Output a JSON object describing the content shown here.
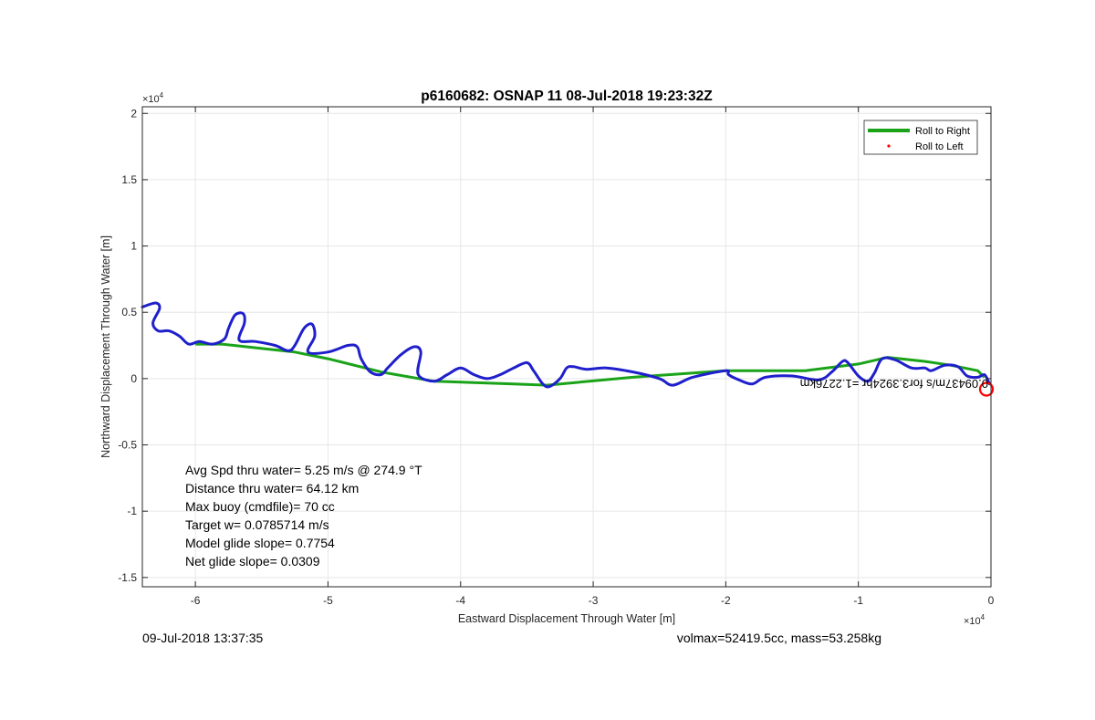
{
  "chart_data": {
    "type": "line",
    "title": "p6160682: OSNAP 11 08-Jul-2018 19:23:32Z",
    "xlabel": "Eastward Displacement Through Water [m]",
    "ylabel": "Northward Displacement Through Water [m]",
    "x_multiplier": "×10",
    "x_exponent": "4",
    "y_multiplier": "×10",
    "y_exponent": "4",
    "xlim": [
      -6.4,
      0
    ],
    "ylim": [
      -1.57,
      2.05
    ],
    "x_ticks": [
      -6,
      -5,
      -4,
      -3,
      -2,
      -1,
      0
    ],
    "x_tick_labels": [
      "-6",
      "-5",
      "-4",
      "-3",
      "-2",
      "-1",
      "0"
    ],
    "y_ticks": [
      -1.5,
      -1,
      -0.5,
      0,
      0.5,
      1,
      1.5,
      2
    ],
    "y_tick_labels": [
      "-1.5",
      "-1",
      "-0.5",
      "0",
      "0.5",
      "1",
      "1.5",
      "2"
    ],
    "grid": true,
    "legend": {
      "location": "top-right",
      "entries": [
        {
          "label": "Roll to Right",
          "color": "#1aa319",
          "marker": "line"
        },
        {
          "label": "Roll to Left",
          "color": "#ff0000",
          "marker": "dot"
        }
      ]
    },
    "series": [
      {
        "name": "Roll to Right",
        "color": "#1aa319",
        "x": [
          -6.0,
          -5.8,
          -5.25,
          -5.0,
          -4.6,
          -4.2,
          -3.6,
          -3.35,
          -2.7,
          -2.0,
          -1.4,
          -1.0,
          -0.78,
          -0.5,
          -0.3,
          -0.1,
          -0.05
        ],
        "y": [
          0.26,
          0.26,
          0.2,
          0.15,
          0.05,
          -0.02,
          -0.04,
          -0.05,
          0.01,
          0.06,
          0.06,
          0.11,
          0.16,
          0.13,
          0.1,
          0.06,
          0.01
        ]
      },
      {
        "color": "#1f1fcc",
        "x": [
          -6.4,
          -6.3,
          -6.27,
          -6.32,
          -6.28,
          -6.2,
          -6.12,
          -6.05,
          -5.97,
          -5.87,
          -5.78,
          -5.75,
          -5.7,
          -5.64,
          -5.63,
          -5.67,
          -5.55,
          -5.4,
          -5.3,
          -5.25,
          -5.18,
          -5.12,
          -5.1,
          -5.15,
          -5.0,
          -4.85,
          -4.78,
          -4.75,
          -4.68,
          -4.6,
          -4.55,
          -4.45,
          -4.35,
          -4.3,
          -4.32,
          -4.2,
          -4.1,
          -4.0,
          -3.9,
          -3.8,
          -3.7,
          -3.6,
          -3.5,
          -3.45,
          -3.38,
          -3.33,
          -3.25,
          -3.2,
          -3.15,
          -3.05,
          -2.9,
          -2.7,
          -2.5,
          -2.4,
          -2.25,
          -2.0,
          -1.98,
          -1.9,
          -1.8,
          -1.7,
          -1.5,
          -1.3,
          -1.2,
          -1.12,
          -1.08,
          -1.0,
          -0.93,
          -0.88,
          -0.82,
          -0.72,
          -0.6,
          -0.5,
          -0.45,
          -0.35,
          -0.25,
          -0.18,
          -0.1,
          -0.05,
          -0.02,
          -0.01
        ],
        "y": [
          0.54,
          0.57,
          0.53,
          0.42,
          0.36,
          0.36,
          0.32,
          0.26,
          0.28,
          0.26,
          0.3,
          0.38,
          0.48,
          0.49,
          0.42,
          0.29,
          0.28,
          0.25,
          0.21,
          0.25,
          0.38,
          0.41,
          0.32,
          0.2,
          0.2,
          0.25,
          0.24,
          0.15,
          0.05,
          0.03,
          0.08,
          0.18,
          0.24,
          0.2,
          0.03,
          -0.02,
          0.03,
          0.08,
          0.03,
          0.0,
          0.03,
          0.08,
          0.12,
          0.06,
          -0.04,
          -0.06,
          0.0,
          0.08,
          0.09,
          0.07,
          0.08,
          0.05,
          0.0,
          -0.05,
          0.01,
          0.06,
          0.03,
          -0.01,
          -0.04,
          0.01,
          0.02,
          -0.01,
          0.05,
          0.13,
          0.12,
          0.02,
          -0.02,
          0.04,
          0.15,
          0.14,
          0.08,
          0.08,
          0.06,
          0.1,
          0.09,
          0.02,
          0.01,
          0.03,
          -0.02,
          -0.04
        ]
      }
    ],
    "end_marker": {
      "x": 0.0,
      "y": -0.08,
      "color": "#ff0000",
      "shape": "circle"
    },
    "flipped_annotation": "0.09437m/s for3.3924hr =1.2276km",
    "annotations": [
      "Avg Spd thru water=  5.25 m/s @ 274.9 °T",
      "Distance thru water= 64.12 km",
      "Max buoy (cmdfile)= 70 cc",
      "Target w= 0.0785714 m/s",
      "Model glide slope= 0.7754",
      "Net glide slope= 0.0309"
    ]
  },
  "footer": {
    "left": "09-Jul-2018 13:37:35",
    "right": "volmax=52419.5cc, mass=53.258kg"
  }
}
